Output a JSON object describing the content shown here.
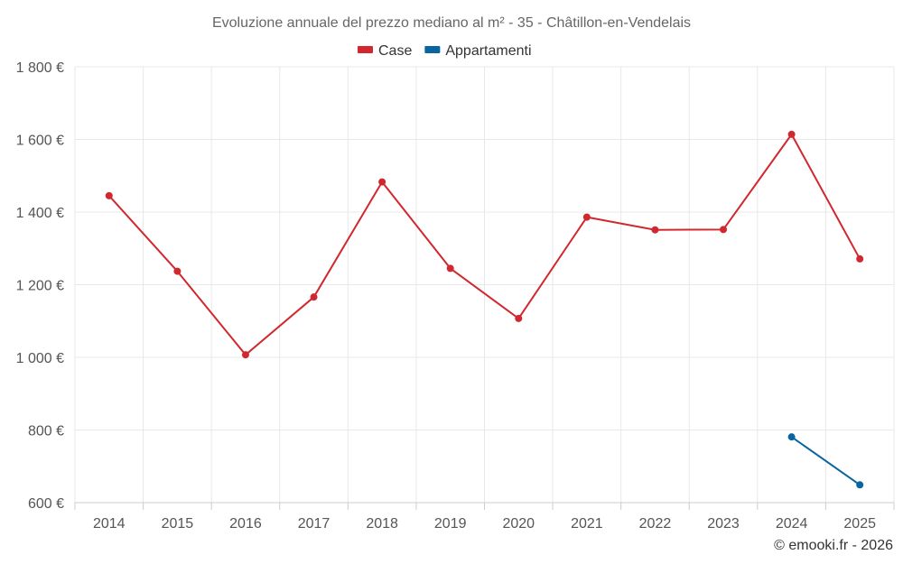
{
  "chart_data": {
    "type": "line",
    "title": "Evoluzione annuale del prezzo mediano al m² - 35 - Châtillon-en-Vendelais",
    "categories": [
      "2014",
      "2015",
      "2016",
      "2017",
      "2018",
      "2019",
      "2020",
      "2021",
      "2022",
      "2023",
      "2024",
      "2025"
    ],
    "ylim": [
      600,
      1800
    ],
    "yticks": [
      600,
      800,
      1000,
      1200,
      1400,
      1600,
      1800
    ],
    "ytick_labels": [
      "600 €",
      "800 €",
      "1 000 €",
      "1 200 €",
      "1 400 €",
      "1 600 €",
      "1 800 €"
    ],
    "xlabel": "",
    "ylabel": "",
    "grid": true,
    "legend_position": "top-center",
    "series": [
      {
        "name": "Case",
        "color": "#d0282e",
        "values": [
          1445,
          1237,
          1007,
          1166,
          1483,
          1245,
          1107,
          1386,
          1351,
          1352,
          1614,
          1271
        ]
      },
      {
        "name": "Appartamenti",
        "color": "#0a64a0",
        "values": [
          null,
          null,
          null,
          null,
          null,
          null,
          null,
          null,
          null,
          null,
          781,
          649
        ]
      }
    ],
    "credit": "© emooki.fr - 2026"
  }
}
